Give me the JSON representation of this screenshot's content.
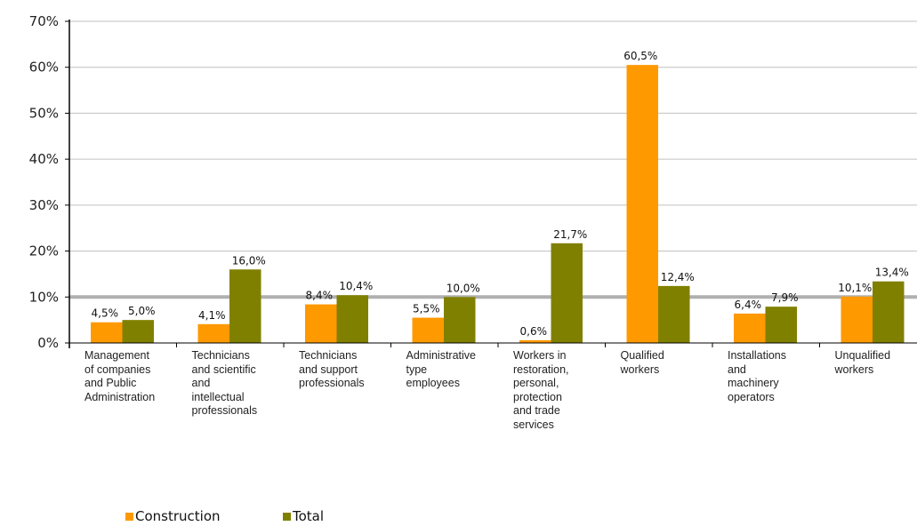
{
  "chart_data": {
    "type": "bar",
    "categories": [
      "Management of companies and Public Administration",
      "Technicians and scientific and intellectual professionals",
      "Technicians and support professionals",
      "Administrative type employees",
      "Workers in restoration, personal, protection and trade services",
      "Qualified workers",
      "Installations and machinery operators",
      "Unqualified workers"
    ],
    "series": [
      {
        "name": "Construction",
        "color": "#ff9900",
        "values": [
          4.5,
          4.1,
          8.4,
          5.5,
          0.6,
          60.5,
          6.4,
          10.1
        ],
        "labels": [
          "4,5%",
          "4,1%",
          "8,4%",
          "5,5%",
          "0,6%",
          "60,5%",
          "6,4%",
          "10,1%"
        ]
      },
      {
        "name": "Total",
        "color": "#808000",
        "values": [
          5.0,
          16.0,
          10.4,
          10.0,
          21.7,
          12.4,
          7.9,
          13.4
        ],
        "labels": [
          "5,0%",
          "16,0%",
          "10,4%",
          "10,0%",
          "21,7%",
          "12,4%",
          "7,9%",
          "13,4%"
        ]
      }
    ],
    "yticks": [
      "0%",
      "10%",
      "20%",
      "30%",
      "40%",
      "50%",
      "60%",
      "70%"
    ],
    "ylim": [
      0,
      70
    ],
    "grid": true,
    "legend_position": "bottom-left",
    "category_label_lines": [
      [
        "Management",
        "of companies",
        "and Public",
        "Administration"
      ],
      [
        "Technicians",
        "and scientific",
        "and",
        "intellectual",
        "professionals"
      ],
      [
        "Technicians",
        "and support",
        "professionals"
      ],
      [
        "Administrative",
        "type",
        "employees"
      ],
      [
        "Workers in",
        "restoration,",
        "personal,",
        "protection",
        "and trade",
        "services"
      ],
      [
        "Qualified",
        "workers"
      ],
      [
        "Installations",
        "and",
        "machinery",
        "operators"
      ],
      [
        "Unqualified",
        "workers"
      ]
    ]
  }
}
